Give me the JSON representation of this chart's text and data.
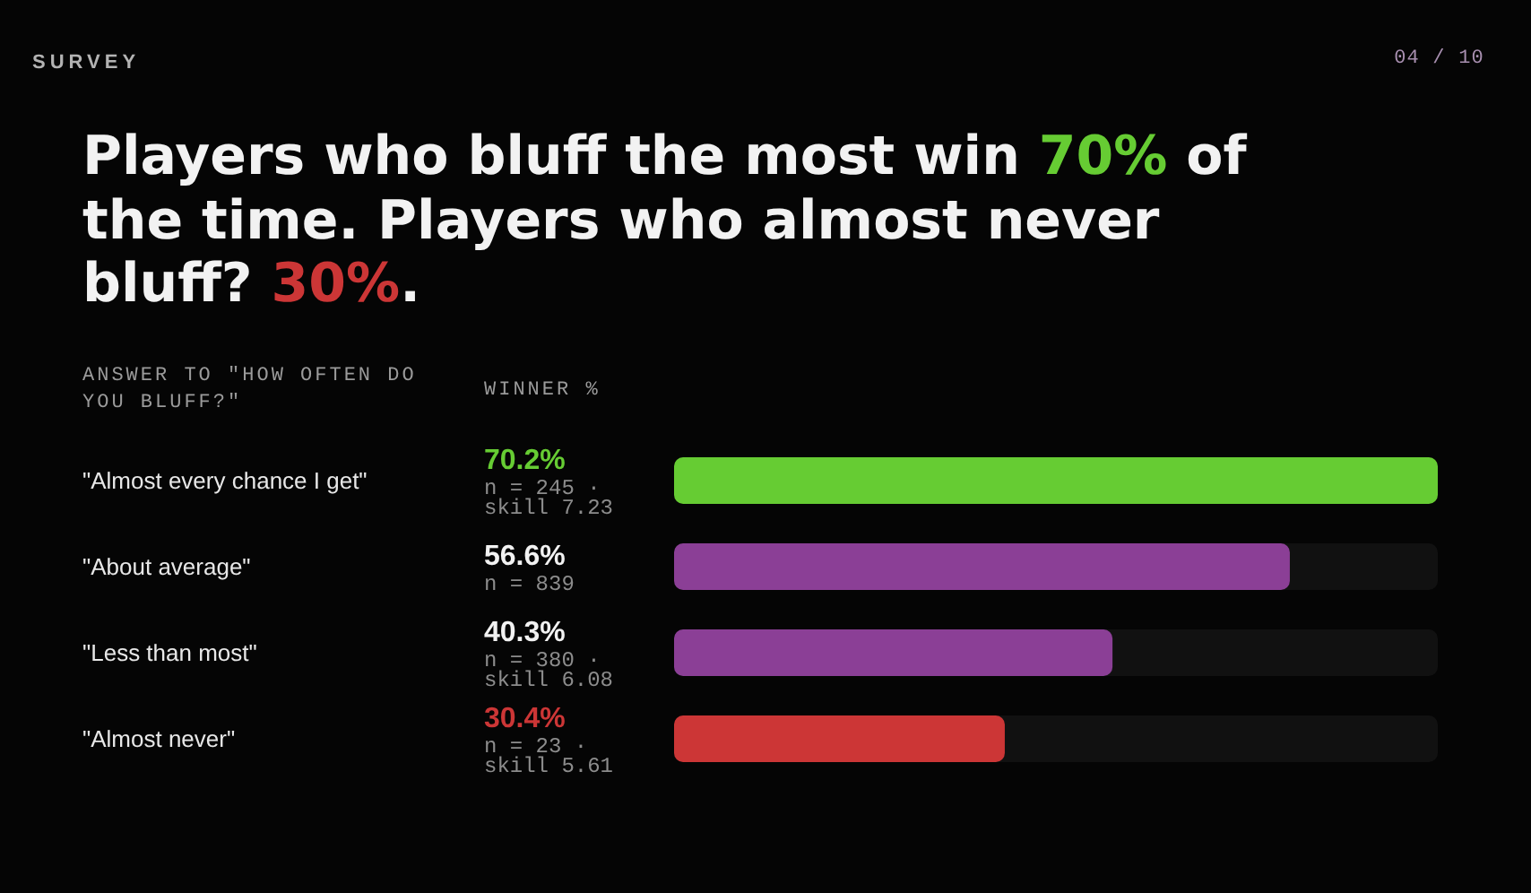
{
  "chart_data": {
    "type": "bar",
    "orientation": "horizontal",
    "title": "Players who bluff the most win 70% of the time. Players who almost never bluff? 30%.",
    "ylabel": "ANSWER TO \"HOW OFTEN DO YOU BLUFF?\"",
    "xlabel": "WINNER %",
    "categories": [
      "\"Almost every chance I get\"",
      "\"About average\"",
      "\"Less than most\"",
      "\"Almost never\""
    ],
    "values": [
      70.2,
      56.6,
      40.3,
      30.4
    ],
    "colors": [
      "#66cc33",
      "#8b3f96",
      "#8b3f96",
      "#cc3636"
    ],
    "value_labels": [
      "70.2%",
      "56.6%",
      "40.3%",
      "30.4%"
    ],
    "annotations": [
      "SURVEY",
      "04 / 10",
      "n = 245 · skill 7.23",
      "n = 839",
      "n = 380 · skill 6.08",
      "n = 23 · skill 5.61"
    ]
  }
}
